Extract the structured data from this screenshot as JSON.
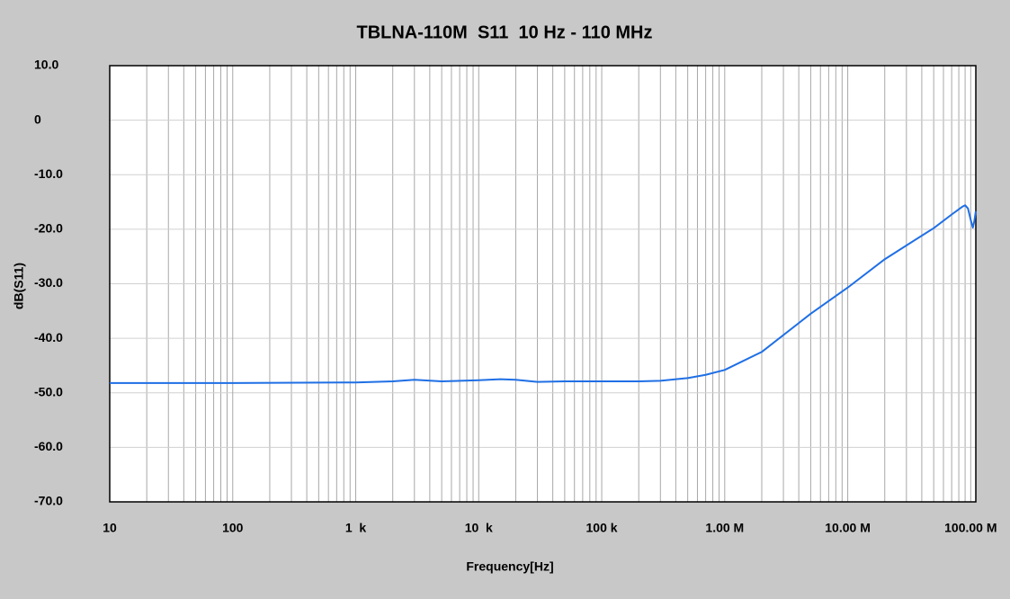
{
  "chart_data": {
    "type": "line",
    "title": "TBLNA-110M  S11  10 Hz - 110 MHz",
    "x_label": "Frequency[Hz]",
    "y_label": "dB(S11)",
    "x_scale": "log",
    "xlim": [
      10,
      110000000
    ],
    "xticks": [
      10,
      100,
      {
        "value": 1000,
        "label": "1  k"
      },
      {
        "value": 10000,
        "label": "10  k"
      },
      {
        "value": 100000,
        "label": "100 k"
      },
      {
        "value": 1000000,
        "label": "1.00 M"
      },
      {
        "value": 10000000,
        "label": "10.00 M"
      },
      {
        "value": 100000000,
        "label": "100.00 M"
      }
    ],
    "ylim": [
      -70,
      10
    ],
    "yticks": [
      {
        "value": 10,
        "label": "10.0"
      },
      0,
      {
        "value": -10,
        "label": "-10.0"
      },
      {
        "value": -20,
        "label": "-20.0"
      },
      {
        "value": -30,
        "label": "-30.0"
      },
      {
        "value": -40,
        "label": "-40.0"
      },
      {
        "value": -50,
        "label": "-50.0"
      },
      {
        "value": -60,
        "label": "-60.0"
      },
      {
        "value": -70,
        "label": "-70.0"
      }
    ],
    "grid": true,
    "minor_grid": true,
    "series": [
      {
        "name": "S11",
        "color": "#1f6fe5",
        "x": [
          10,
          100,
          1000,
          2000,
          3000,
          5000,
          10000,
          15000,
          20000,
          30000,
          50000,
          100000,
          200000,
          300000,
          500000,
          700000,
          1000000,
          2000000,
          5000000,
          10000000,
          20000000,
          50000000,
          70000000,
          85000000,
          90000000,
          95000000,
          100000000,
          104000000,
          107000000,
          110000000
        ],
        "values": [
          -48.2,
          -48.2,
          -48.1,
          -47.9,
          -47.6,
          -47.9,
          -47.7,
          -47.5,
          -47.6,
          -48.0,
          -47.9,
          -47.9,
          -47.9,
          -47.8,
          -47.3,
          -46.7,
          -45.8,
          -42.5,
          -35.5,
          -30.7,
          -25.5,
          -19.8,
          -17.3,
          -15.9,
          -15.6,
          -16.2,
          -18.3,
          -19.7,
          -18.5,
          -16.7
        ]
      }
    ]
  }
}
